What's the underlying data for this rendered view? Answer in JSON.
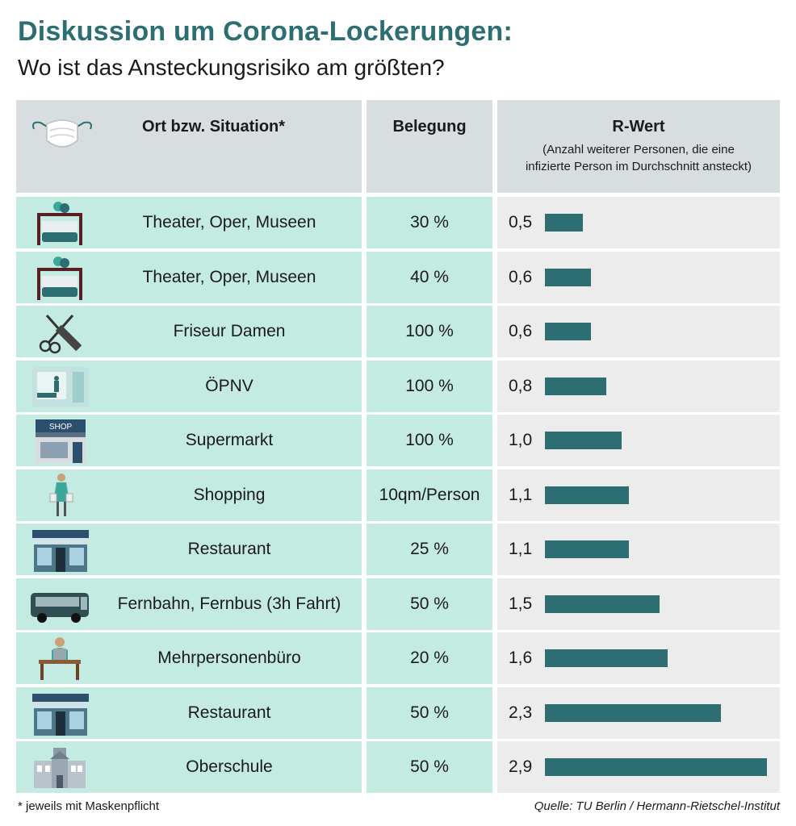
{
  "title": "Diskussion um Corona-Lockerungen:",
  "subtitle": "Wo ist das Ansteckungsrisiko am größten?",
  "header": {
    "col1": "Ort bzw. Situation*",
    "col2": "Belegung",
    "col3": "R-Wert",
    "col3_sub_line1": "(Anzahl weiterer Personen, die eine",
    "col3_sub_line2": "infizierte Person im Durchschnitt ansteckt)"
  },
  "colors": {
    "accent": "#2d6e72",
    "row_bg": "#c4ebe1",
    "bar_bg": "#ececec",
    "header_bg": "#d8dedf"
  },
  "rows": [
    {
      "icon": "theater-icon",
      "label": "Theater, Oper, Museen",
      "occupancy": "30 %",
      "r_label": "0,5"
    },
    {
      "icon": "theater-icon",
      "label": "Theater, Oper, Museen",
      "occupancy": "40 %",
      "r_label": "0,6"
    },
    {
      "icon": "scissors-comb-icon",
      "label": "Friseur Damen",
      "occupancy": "100 %",
      "r_label": "0,6"
    },
    {
      "icon": "tram-icon",
      "label": "ÖPNV",
      "occupancy": "100 %",
      "r_label": "0,8"
    },
    {
      "icon": "shop-icon",
      "label": "Supermarkt",
      "occupancy": "100 %",
      "r_label": "1,0"
    },
    {
      "icon": "shopper-icon",
      "label": "Shopping",
      "occupancy": "10qm/Person",
      "r_label": "1,1"
    },
    {
      "icon": "restaurant-icon",
      "label": "Restaurant",
      "occupancy": "25 %",
      "r_label": "1,1"
    },
    {
      "icon": "bus-icon",
      "label": "Fernbahn, Fernbus (3h Fahrt)",
      "occupancy": "50 %",
      "r_label": "1,5"
    },
    {
      "icon": "office-desk-icon",
      "label": "Mehrpersonenbüro",
      "occupancy": "20 %",
      "r_label": "1,6"
    },
    {
      "icon": "restaurant-icon",
      "label": "Restaurant",
      "occupancy": "50 %",
      "r_label": "2,3"
    },
    {
      "icon": "school-building-icon",
      "label": "Oberschule",
      "occupancy": "50 %",
      "r_label": "2,9"
    }
  ],
  "chart_data": {
    "type": "bar",
    "orientation": "horizontal",
    "title": "Diskussion um Corona-Lockerungen: Wo ist das Ansteckungsrisiko am größten?",
    "categories": [
      "Theater, Oper, Museen (30 %)",
      "Theater, Oper, Museen (40 %)",
      "Friseur Damen (100 %)",
      "ÖPNV (100 %)",
      "Supermarkt (100 %)",
      "Shopping (10qm/Person)",
      "Restaurant (25 %)",
      "Fernbahn, Fernbus (3h Fahrt) (50 %)",
      "Mehrpersonenbüro (20 %)",
      "Restaurant (50 %)",
      "Oberschule (50 %)"
    ],
    "values": [
      0.5,
      0.6,
      0.6,
      0.8,
      1.0,
      1.1,
      1.1,
      1.5,
      1.6,
      2.3,
      2.9
    ],
    "xlabel": "R-Wert",
    "ylabel": "Ort bzw. Situation",
    "xlim": [
      0,
      2.9
    ]
  },
  "footnote": "* jeweils mit Maskenpflicht",
  "source": "Quelle: TU Berlin / Hermann-Rietschel-Institut"
}
